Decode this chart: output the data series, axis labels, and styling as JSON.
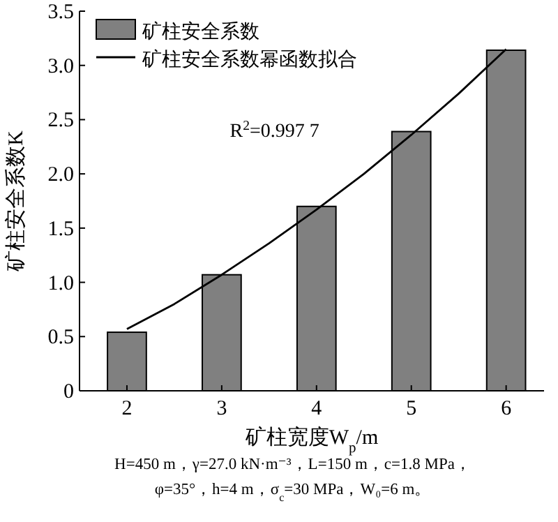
{
  "chart_data": {
    "type": "bar",
    "x": [
      2,
      3,
      4,
      5,
      6
    ],
    "xlabel": "矿柱宽度W$_{p}$/m",
    "ylabel": "矿柱安全系数K",
    "series": [
      {
        "name": "矿柱安全系数",
        "color": "#808080",
        "values": [
          0.54,
          1.07,
          1.7,
          2.39,
          3.14
        ]
      },
      {
        "name": "矿柱安全系数幂函数拟合",
        "type": "line",
        "color": "#000000",
        "x": [
          2,
          2.5,
          3,
          3.5,
          4,
          4.5,
          5,
          5.5,
          6
        ],
        "values": [
          0.57,
          0.8,
          1.07,
          1.36,
          1.67,
          2.0,
          2.36,
          2.74,
          3.15
        ]
      }
    ],
    "xlim": [
      1.5,
      6.4
    ],
    "ylim": [
      0,
      3.5
    ],
    "xticks": [
      2,
      3,
      4,
      5,
      6
    ],
    "yticks": [
      0,
      0.5,
      {
        "value": 1,
        "label": "1.0"
      },
      1.5,
      {
        "value": 2,
        "label": "2.0"
      },
      2.5,
      {
        "value": 3,
        "label": "3.0"
      },
      3.5
    ],
    "legend": "top left",
    "annotations": [
      "R$^{2}$=0.997 7",
      "H=450 m，γ=27.0 kN·m⁻³，L=150 m，c=1.8 MPa，",
      "φ=35°，h=4 m，σ$_{c}$=30 MPa，W₀=6 m。"
    ]
  }
}
